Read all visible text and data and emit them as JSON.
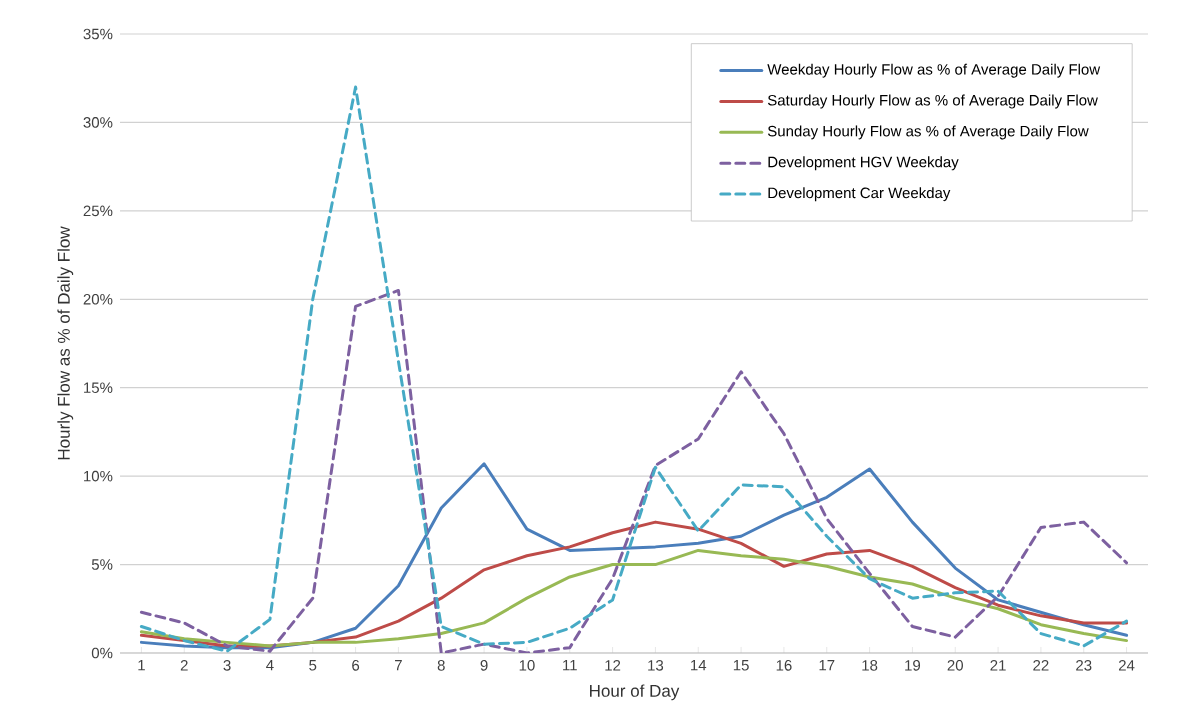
{
  "chart_data": {
    "type": "line",
    "xlabel": "Hour of Day",
    "ylabel": "Hourly Flow as % of Daily Flow",
    "categories": [
      "1",
      "2",
      "3",
      "4",
      "5",
      "6",
      "7",
      "8",
      "9",
      "10",
      "11",
      "12",
      "13",
      "14",
      "15",
      "16",
      "17",
      "18",
      "19",
      "20",
      "21",
      "22",
      "23",
      "24"
    ],
    "ylim": [
      0,
      35
    ],
    "yticks": [
      {
        "value": 0,
        "label": "0%"
      },
      {
        "value": 5,
        "label": "5%"
      },
      {
        "value": 10,
        "label": "10%"
      },
      {
        "value": 15,
        "label": "15%"
      },
      {
        "value": 20,
        "label": "20%"
      },
      {
        "value": 25,
        "label": "25%"
      },
      {
        "value": 30,
        "label": "30%"
      },
      {
        "value": 35,
        "label": "35%"
      }
    ],
    "grid": "y",
    "legend": "top right",
    "marker": "none",
    "series": [
      {
        "name": "Weekday Hourly Flow as % of Average Daily Flow",
        "color": "#4a7ebb",
        "line_style": "solid",
        "values": [
          0.6,
          0.4,
          0.3,
          0.3,
          0.6,
          1.4,
          3.8,
          8.2,
          10.7,
          7.0,
          5.8,
          5.9,
          6.0,
          6.2,
          6.6,
          7.8,
          8.8,
          10.4,
          7.4,
          4.8,
          3.0,
          2.3,
          1.6,
          1.0
        ]
      },
      {
        "name": "Saturday Hourly Flow as % of Average Daily Flow",
        "color": "#be4b48",
        "line_style": "solid",
        "values": [
          1.0,
          0.7,
          0.4,
          0.4,
          0.6,
          0.9,
          1.8,
          3.1,
          4.7,
          5.5,
          6.0,
          6.8,
          7.4,
          7.0,
          6.2,
          4.9,
          5.6,
          5.8,
          4.9,
          3.7,
          2.7,
          2.1,
          1.7,
          1.7
        ]
      },
      {
        "name": "Sunday Hourly Flow as % of Average Daily Flow",
        "color": "#98b954",
        "line_style": "solid",
        "values": [
          1.2,
          0.8,
          0.6,
          0.4,
          0.6,
          0.6,
          0.8,
          1.1,
          1.7,
          3.1,
          4.3,
          5.0,
          5.0,
          5.8,
          5.5,
          5.3,
          4.9,
          4.3,
          3.9,
          3.1,
          2.5,
          1.6,
          1.1,
          0.7
        ]
      },
      {
        "name": "Development HGV Weekday",
        "color": "#7d60a0",
        "line_style": "dashed",
        "values": [
          2.3,
          1.7,
          0.4,
          0.1,
          3.1,
          19.6,
          20.5,
          0.0,
          0.5,
          0.0,
          0.3,
          4.2,
          10.6,
          12.1,
          15.9,
          12.4,
          7.6,
          4.5,
          1.5,
          0.9,
          3.2,
          7.1,
          7.4,
          5.1
        ]
      },
      {
        "name": "Development Car Weekday",
        "color": "#46aac5",
        "line_style": "dashed",
        "values": [
          1.5,
          0.7,
          0.1,
          1.9,
          20.0,
          32.0,
          16.5,
          1.5,
          0.5,
          0.6,
          1.4,
          3.0,
          10.5,
          6.9,
          9.5,
          9.4,
          6.6,
          4.2,
          3.1,
          3.4,
          3.5,
          1.1,
          0.4,
          1.8
        ]
      }
    ]
  }
}
